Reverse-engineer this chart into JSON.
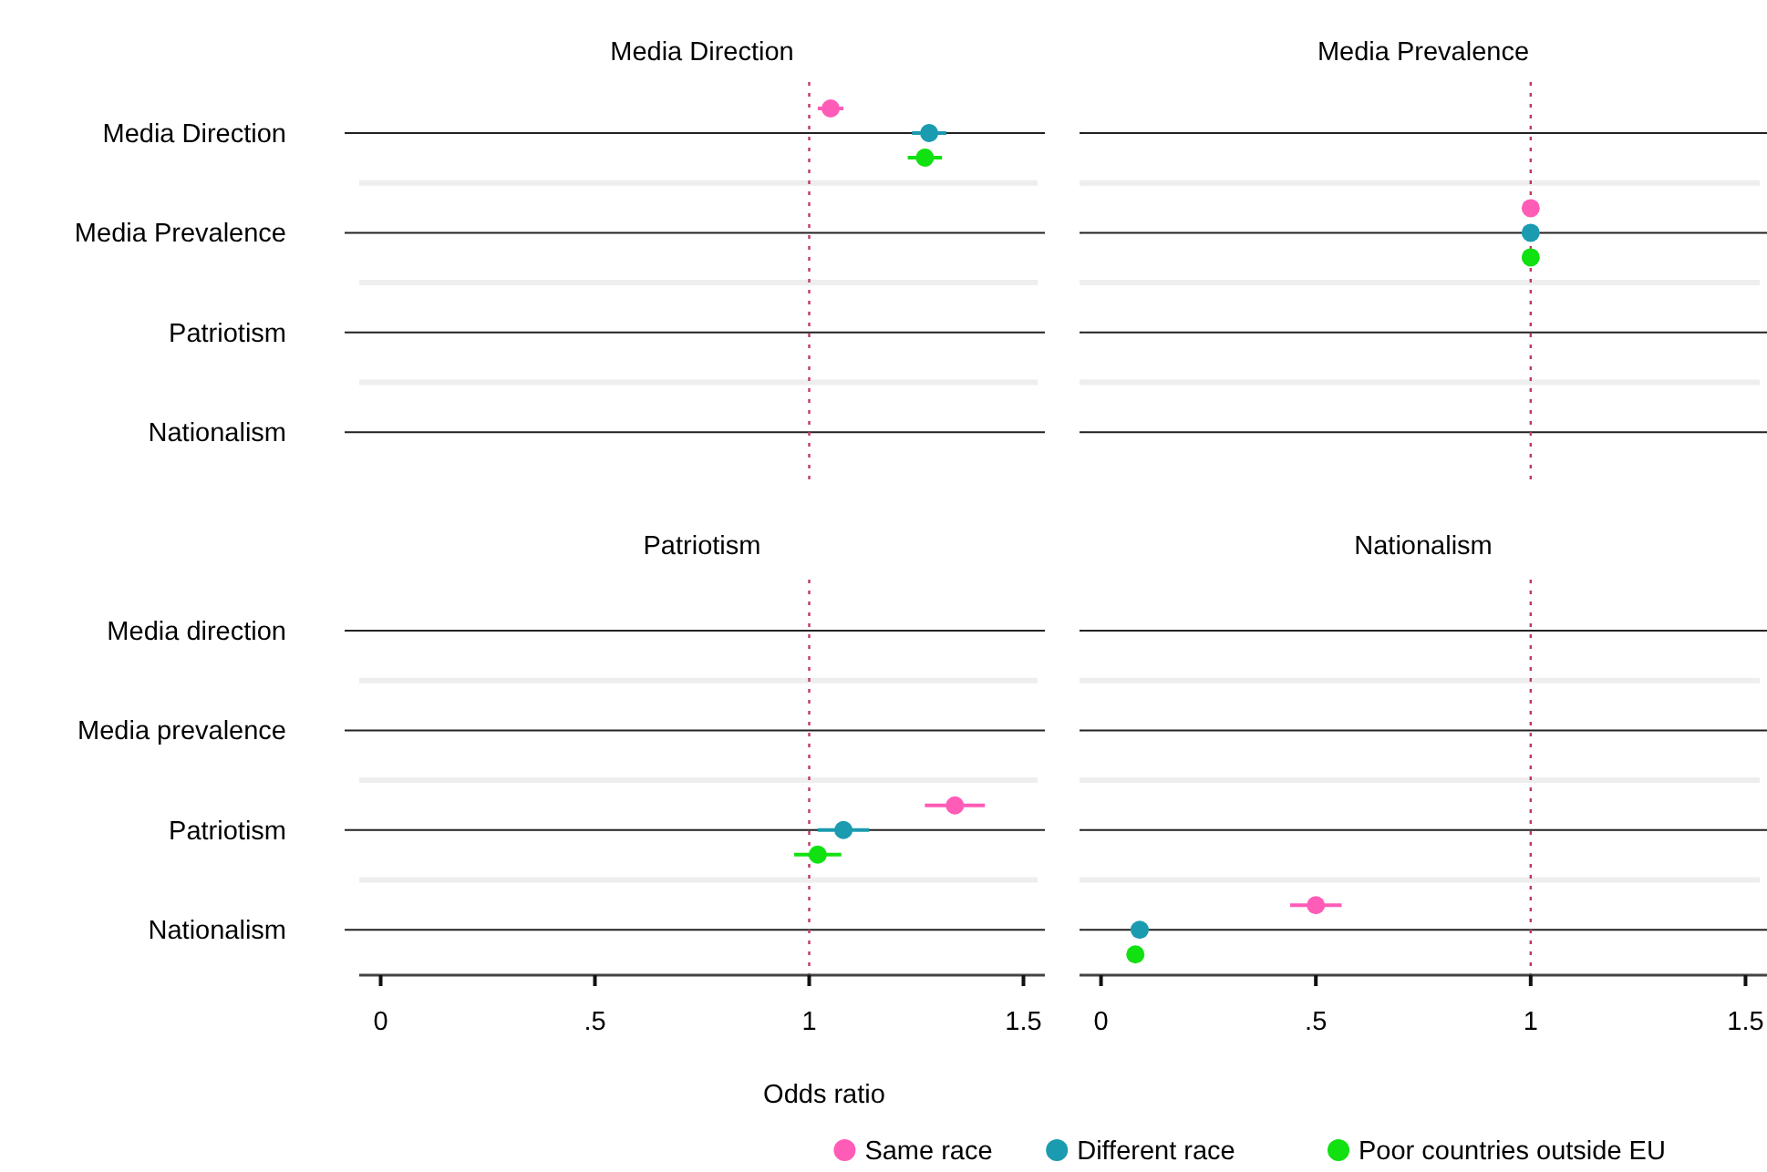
{
  "chart_data": [
    {
      "type": "scatter",
      "orientation": "horizontal",
      "title": "Media Direction",
      "categories": [
        "Media Direction",
        "Media Prevalence",
        "Patriotism",
        "Nationalism"
      ],
      "xlim": [
        -0.05,
        1.55
      ],
      "tick_labels": "y",
      "grid": "y",
      "marker": "circle",
      "ref_lines": [
        {
          "axis": "x",
          "value": 1,
          "color": "#c0395e",
          "line_style": "dotted"
        }
      ],
      "series": [
        {
          "color": "#ff5cb8",
          "values": [
            1.05,
            null,
            null,
            null
          ],
          "errors": [
            0.03,
            null,
            null,
            null
          ]
        },
        {
          "color": "#1a9bb0",
          "values": [
            1.28,
            null,
            null,
            null
          ],
          "errors": [
            0.04,
            null,
            null,
            null
          ]
        },
        {
          "color": "#11e011",
          "values": [
            1.27,
            null,
            null,
            null
          ],
          "errors": [
            0.04,
            null,
            null,
            null
          ]
        }
      ]
    },
    {
      "type": "scatter",
      "orientation": "horizontal",
      "title": "Media Prevalence",
      "categories": [
        null,
        null,
        null,
        null
      ],
      "xlim": [
        -0.05,
        1.55
      ],
      "tick_labels": false,
      "grid": "y",
      "marker": "circle",
      "ref_lines": [
        {
          "axis": "x",
          "value": 1,
          "color": "#c0395e",
          "line_style": "dotted"
        }
      ],
      "series": [
        {
          "color": "#ff5cb8",
          "values": [
            null,
            1.0,
            null,
            null
          ]
        },
        {
          "color": "#1a9bb0",
          "values": [
            null,
            1.0,
            null,
            null
          ]
        },
        {
          "color": "#11e011",
          "values": [
            null,
            1.0,
            null,
            null
          ]
        }
      ]
    },
    {
      "type": "scatter",
      "orientation": "horizontal",
      "title": "Patriotism",
      "xlabel": "Odds ratio",
      "categories": [
        "Media direction",
        "Media prevalence",
        "Patriotism",
        "Nationalism"
      ],
      "xlim": [
        -0.05,
        1.55
      ],
      "xticks": [
        0,
        {
          "value": 0.5,
          "label": ".5"
        },
        1,
        1.5
      ],
      "grid": "y",
      "marker": "circle",
      "ref_lines": [
        {
          "axis": "x",
          "value": 1,
          "color": "#c0395e",
          "line_style": "dotted"
        }
      ],
      "series": [
        {
          "color": "#ff5cb8",
          "values": [
            null,
            null,
            1.34,
            null
          ],
          "errors": [
            null,
            null,
            0.07,
            null
          ]
        },
        {
          "color": "#1a9bb0",
          "values": [
            null,
            null,
            1.08,
            null
          ],
          "errors": [
            null,
            null,
            0.06,
            null
          ]
        },
        {
          "color": "#11e011",
          "values": [
            null,
            null,
            1.02,
            null
          ],
          "errors": [
            null,
            null,
            0.055,
            null
          ]
        }
      ]
    },
    {
      "type": "scatter",
      "orientation": "horizontal",
      "title": "Nationalism",
      "categories": [
        null,
        null,
        null,
        null
      ],
      "xlim": [
        -0.05,
        1.55
      ],
      "xticks": [
        0,
        {
          "value": 0.5,
          "label": ".5"
        },
        1,
        1.5
      ],
      "tick_labels": "x",
      "grid": "y",
      "marker": "circle",
      "legend": "bottom",
      "ref_lines": [
        {
          "axis": "x",
          "value": 1,
          "color": "#c0395e",
          "line_style": "dotted"
        }
      ],
      "series": [
        {
          "name": "Same race",
          "color": "#ff5cb8",
          "values": [
            null,
            null,
            null,
            0.5
          ],
          "errors": [
            null,
            null,
            null,
            0.06
          ]
        },
        {
          "name": "Different race",
          "color": "#1a9bb0",
          "values": [
            null,
            null,
            null,
            0.09
          ]
        },
        {
          "name": "Poor countries outside EU",
          "color": "#11e011",
          "values": [
            null,
            null,
            null,
            0.08
          ]
        }
      ]
    }
  ]
}
